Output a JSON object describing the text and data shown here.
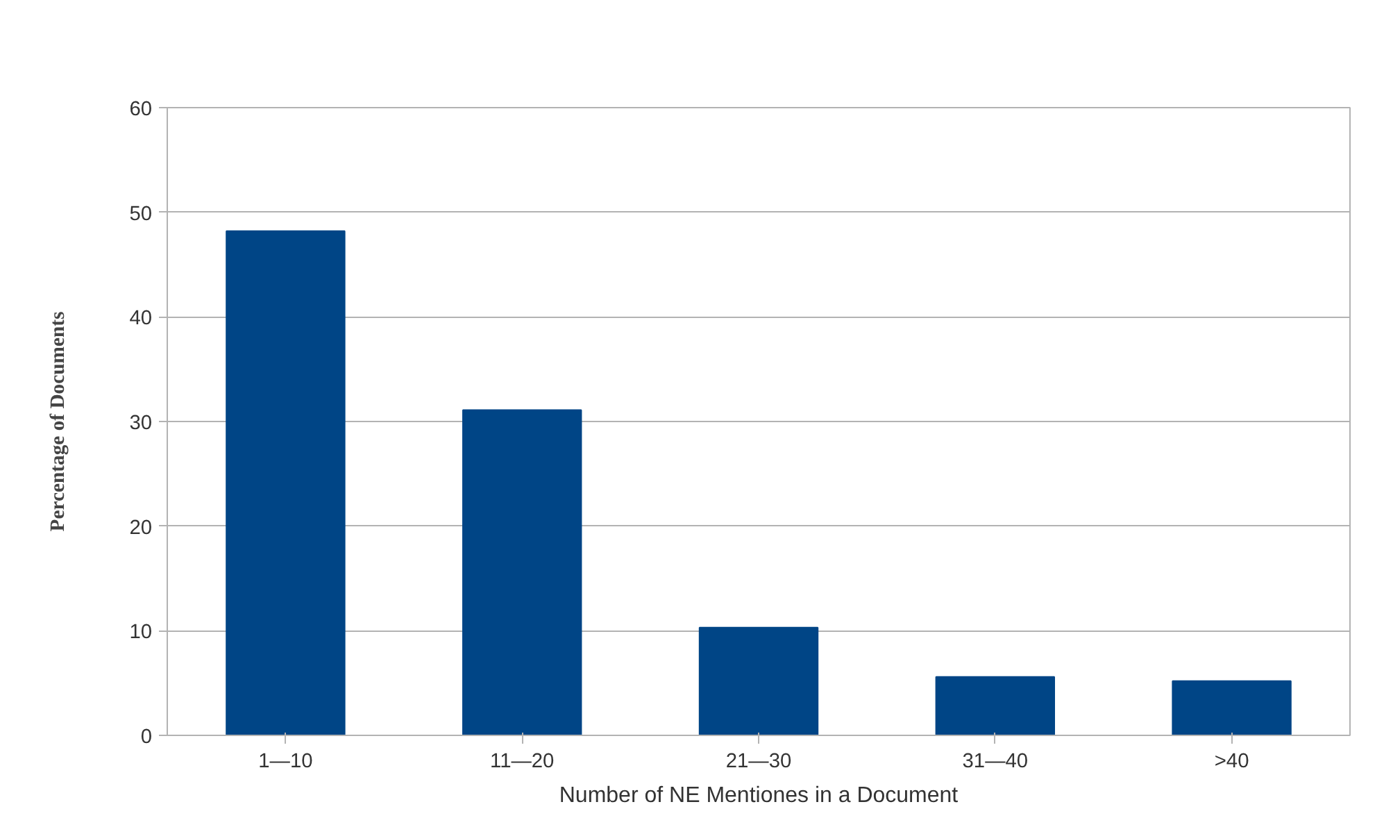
{
  "chart_data": {
    "type": "bar",
    "xlabel": "Number of NE Mentiones in a Document",
    "ylabel": "Percentage of Documents",
    "categories": [
      "1—10",
      "11—20",
      "21—30",
      "31—40",
      ">40"
    ],
    "values": [
      48.2,
      31.1,
      10.3,
      5.6,
      5.2
    ],
    "color": "#004586",
    "ylim": [
      0,
      60
    ],
    "yticks": [
      0,
      10,
      20,
      30,
      40,
      50,
      60
    ],
    "grid": "y"
  }
}
